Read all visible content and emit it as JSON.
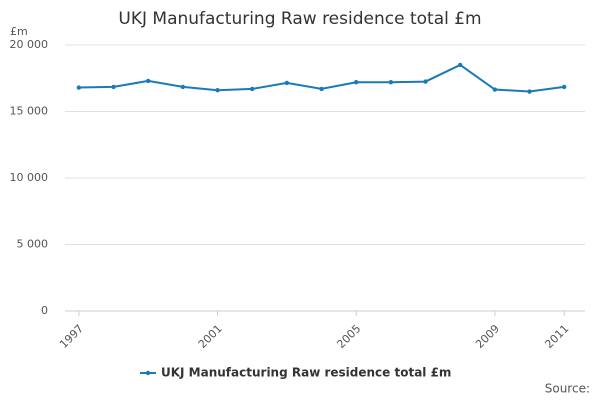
{
  "chart_data": {
    "type": "line",
    "title": "UKJ Manufacturing Raw residence total £m",
    "y_label": "£m",
    "source": "Source:",
    "x": [
      1997,
      1998,
      1999,
      2000,
      2001,
      2002,
      2003,
      2004,
      2005,
      2006,
      2007,
      2008,
      2009,
      2010,
      2011
    ],
    "series": [
      {
        "name": "UKJ Manufacturing Raw residence total £m",
        "color": "#1a7ab5",
        "values": [
          16800,
          16850,
          17300,
          16850,
          16600,
          16700,
          17150,
          16700,
          17200,
          17200,
          17250,
          18500,
          16650,
          16500,
          16850
        ]
      }
    ],
    "xlim": [
      1996.6,
      2011.6
    ],
    "xticks": [
      1997,
      2001,
      2005,
      2009,
      2011
    ],
    "ylim": [
      0,
      20000
    ],
    "yticks": [
      0,
      {
        "value": 5000,
        "label": "5 000"
      },
      {
        "value": 10000,
        "label": "10 000"
      },
      {
        "value": 15000,
        "label": "15 000"
      },
      {
        "value": 20000,
        "label": "20 000"
      }
    ],
    "grid": true,
    "legend": "bottom"
  }
}
